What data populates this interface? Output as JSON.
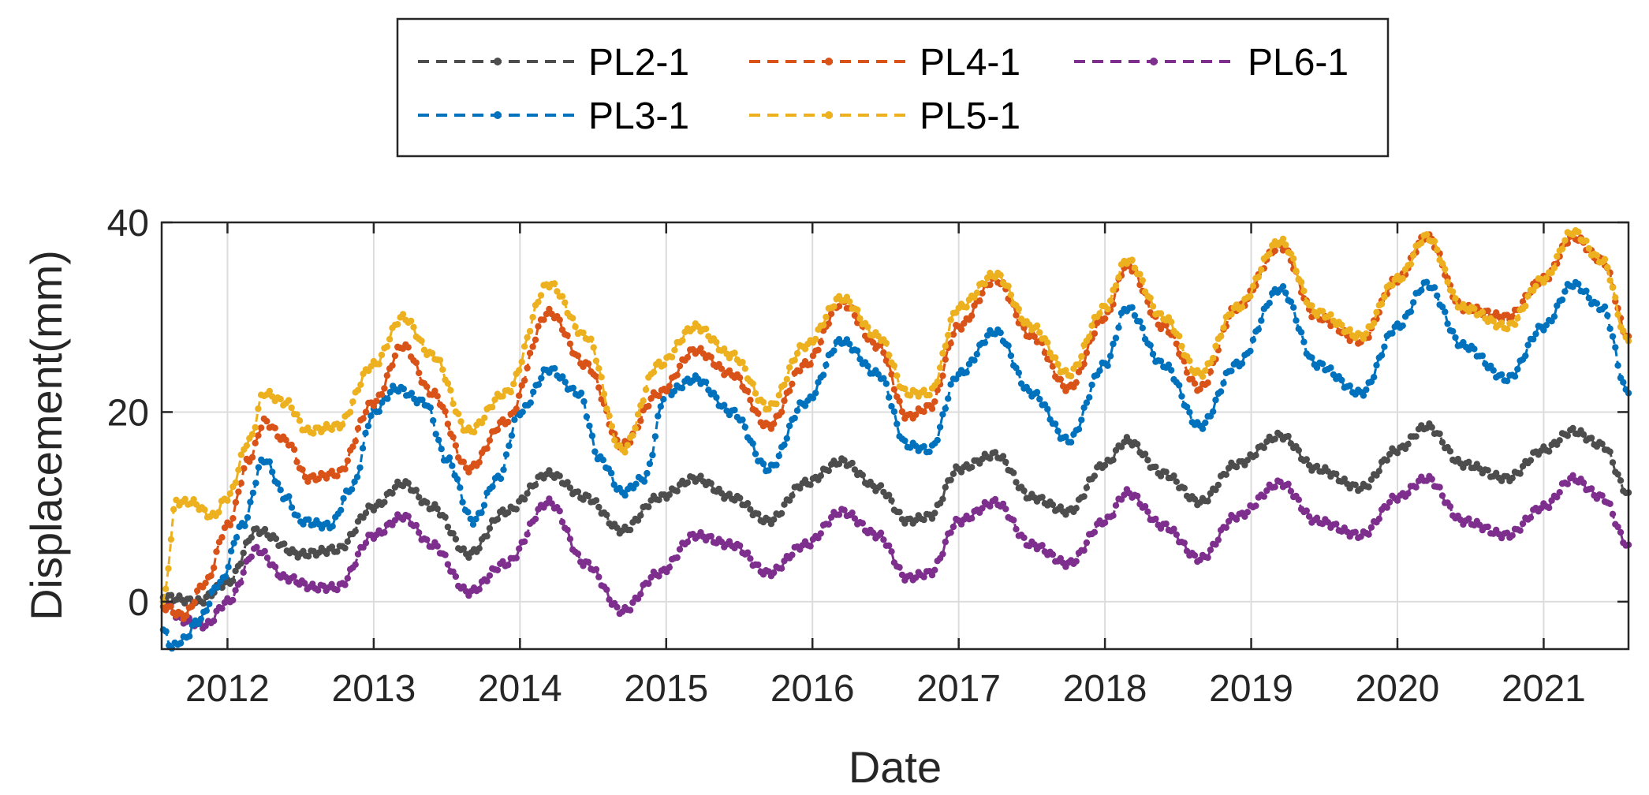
{
  "chart_data": {
    "type": "line",
    "title": "",
    "xlabel": "Date",
    "ylabel": "Displacement(mm)",
    "xlim": [
      2011.55,
      2021.58
    ],
    "ylim": [
      -5,
      40
    ],
    "yticks": [
      0,
      20,
      40
    ],
    "ytick_labels": [
      "0",
      "20",
      "40"
    ],
    "xticks": [
      2012,
      2013,
      2014,
      2015,
      2016,
      2017,
      2018,
      2019,
      2020,
      2021
    ],
    "xtick_labels": [
      "2012",
      "2013",
      "2014",
      "2015",
      "2016",
      "2017",
      "2018",
      "2019",
      "2020",
      "2021"
    ],
    "grid": true,
    "legend_position": "top",
    "series": [
      {
        "name": "PL2-1",
        "color": "#4d4d4d",
        "x": [
          2011.56,
          2011.8,
          2012.0,
          2012.2,
          2012.5,
          2012.75,
          2013.0,
          2013.2,
          2013.4,
          2013.65,
          2013.9,
          2014.2,
          2014.45,
          2014.7,
          2014.95,
          2015.2,
          2015.45,
          2015.7,
          2015.95,
          2016.2,
          2016.45,
          2016.65,
          2016.8,
          2017.0,
          2017.25,
          2017.5,
          2017.75,
          2018.0,
          2018.15,
          2018.4,
          2018.65,
          2018.9,
          2019.2,
          2019.45,
          2019.75,
          2020.0,
          2020.2,
          2020.45,
          2020.75,
          2021.0,
          2021.2,
          2021.4,
          2021.58
        ],
        "y": [
          0.5,
          0,
          2,
          7.5,
          5,
          5.5,
          10,
          12.5,
          10,
          5,
          9.5,
          13.5,
          11,
          7.5,
          11,
          13,
          11,
          8.5,
          12.5,
          14.8,
          12,
          8.5,
          9,
          14,
          15.5,
          11,
          9.5,
          14.5,
          17,
          13.5,
          10.5,
          14.5,
          17.5,
          14,
          12,
          16,
          18.5,
          14.5,
          13,
          16,
          18,
          16.5,
          11.5
        ]
      },
      {
        "name": "PL3-1",
        "color": "#0072bd",
        "x": [
          2011.56,
          2011.62,
          2011.7,
          2011.8,
          2011.95,
          2012.1,
          2012.25,
          2012.4,
          2012.5,
          2012.7,
          2012.85,
          2013.0,
          2013.15,
          2013.35,
          2013.5,
          2013.68,
          2013.85,
          2014.0,
          2014.2,
          2014.4,
          2014.55,
          2014.7,
          2014.85,
          2015.0,
          2015.2,
          2015.45,
          2015.7,
          2015.95,
          2016.2,
          2016.45,
          2016.65,
          2016.8,
          2017.0,
          2017.25,
          2017.5,
          2017.75,
          2018.0,
          2018.15,
          2018.4,
          2018.65,
          2018.9,
          2019.2,
          2019.45,
          2019.75,
          2020.0,
          2020.2,
          2020.45,
          2020.75,
          2021.0,
          2021.2,
          2021.4,
          2021.58
        ],
        "y": [
          -3,
          -4.8,
          -4,
          -2,
          2,
          8,
          15,
          11,
          8.5,
          8,
          12,
          20,
          22.5,
          21,
          15,
          8.5,
          13,
          20,
          24.5,
          22,
          15,
          11.5,
          13,
          22,
          23.5,
          20,
          14,
          21,
          27.5,
          24,
          16.5,
          16,
          24,
          28.5,
          22,
          17,
          25,
          31,
          25,
          18.5,
          25,
          33,
          25,
          22,
          29,
          33.5,
          27,
          23.5,
          29,
          33.5,
          31,
          22
        ]
      },
      {
        "name": "PL4-1",
        "color": "#d95319",
        "x": [
          2011.56,
          2011.7,
          2011.85,
          2012.0,
          2012.15,
          2012.25,
          2012.4,
          2012.55,
          2012.75,
          2013.0,
          2013.2,
          2013.4,
          2013.65,
          2013.9,
          2014.2,
          2014.45,
          2014.7,
          2014.95,
          2015.2,
          2015.45,
          2015.7,
          2015.95,
          2016.2,
          2016.45,
          2016.65,
          2016.8,
          2017.0,
          2017.25,
          2017.5,
          2017.75,
          2018.0,
          2018.15,
          2018.4,
          2018.65,
          2018.9,
          2019.2,
          2019.45,
          2019.75,
          2020.0,
          2020.2,
          2020.45,
          2020.75,
          2021.0,
          2021.2,
          2021.4,
          2021.58
        ],
        "y": [
          -0.5,
          -1.5,
          2,
          8,
          15,
          19,
          17,
          13,
          13.5,
          21,
          27,
          22,
          14,
          19,
          30.5,
          25,
          16.5,
          22,
          26.5,
          24,
          18.5,
          25,
          31.5,
          27,
          19.5,
          20.5,
          29,
          34,
          28,
          22.5,
          30,
          35.5,
          29,
          22.5,
          31,
          37.5,
          30,
          27.5,
          34,
          38.5,
          31,
          30,
          34,
          38.5,
          36,
          28
        ]
      },
      {
        "name": "PL5-1",
        "color": "#edb120",
        "x": [
          2011.56,
          2011.65,
          2011.75,
          2011.9,
          2012.0,
          2012.15,
          2012.25,
          2012.4,
          2012.55,
          2012.75,
          2013.0,
          2013.2,
          2013.4,
          2013.65,
          2013.9,
          2014.2,
          2014.45,
          2014.7,
          2014.95,
          2015.2,
          2015.45,
          2015.7,
          2015.95,
          2016.2,
          2016.45,
          2016.65,
          2016.8,
          2017.0,
          2017.25,
          2017.5,
          2017.75,
          2018.0,
          2018.15,
          2018.4,
          2018.65,
          2018.9,
          2019.2,
          2019.45,
          2019.75,
          2020.0,
          2020.2,
          2020.45,
          2020.75,
          2021.0,
          2021.2,
          2021.4,
          2021.58
        ],
        "y": [
          0,
          10.5,
          10.5,
          9,
          11,
          17,
          22,
          21,
          18,
          18.5,
          25,
          30,
          26,
          18,
          22,
          33.5,
          28,
          16,
          25,
          29,
          26,
          20.5,
          27,
          32,
          28,
          22,
          22,
          31,
          34.5,
          29,
          24,
          31,
          36,
          30,
          24,
          31,
          38,
          30.5,
          28,
          34,
          38.5,
          31,
          29,
          34,
          39,
          36,
          27.5
        ]
      },
      {
        "name": "PL6-1",
        "color": "#7e2f8e",
        "x": [
          2011.56,
          2011.7,
          2011.85,
          2012.0,
          2012.2,
          2012.4,
          2012.6,
          2012.75,
          2013.0,
          2013.2,
          2013.4,
          2013.65,
          2013.9,
          2014.2,
          2014.45,
          2014.7,
          2014.95,
          2015.2,
          2015.45,
          2015.7,
          2015.95,
          2016.2,
          2016.45,
          2016.65,
          2016.8,
          2017.0,
          2017.25,
          2017.5,
          2017.75,
          2018.0,
          2018.15,
          2018.4,
          2018.65,
          2018.9,
          2019.2,
          2019.45,
          2019.75,
          2020.0,
          2020.2,
          2020.45,
          2020.75,
          2021.0,
          2021.2,
          2021.4,
          2021.58
        ],
        "y": [
          0,
          -2,
          -2.5,
          0,
          5.5,
          2.5,
          1.5,
          1.5,
          7,
          9,
          6,
          1,
          4,
          10.5,
          4,
          -1,
          3,
          7,
          6,
          3,
          6,
          9.5,
          7,
          2.5,
          3,
          8.5,
          10.5,
          6,
          4,
          8.5,
          11.5,
          8,
          4.5,
          9,
          12.5,
          8.5,
          7,
          11,
          13,
          8.5,
          7,
          10,
          13,
          11,
          6
        ]
      }
    ]
  }
}
